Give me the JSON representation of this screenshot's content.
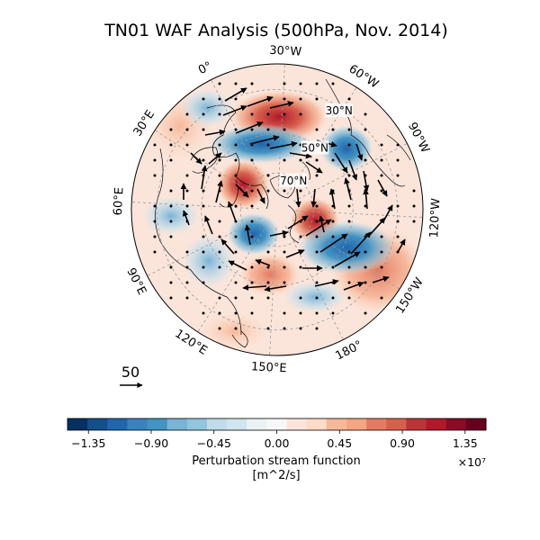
{
  "figure": {
    "title": "TN01 WAF Analysis (500hPa, Nov. 2014)"
  },
  "map": {
    "projection": "north-polar-stereographic",
    "lon_labels": [
      "30°W",
      "60°W",
      "90°W",
      "120°W",
      "150°W",
      "180°",
      "150°E",
      "120°E",
      "90°E",
      "60°E",
      "30°E",
      "0°"
    ],
    "lat_labels": [
      "30°N",
      "50°N",
      "70°N"
    ],
    "field": "perturbation stream function (shaded)",
    "vectors": "wave activity flux (arrows)"
  },
  "reference_vector": {
    "label": "50"
  },
  "colorbar": {
    "label_line1": "Perturbation stream function",
    "label_line2": "[m^2/s]",
    "multiplier": "×10⁷",
    "ticks": [
      "−1.35",
      "−0.90",
      "−0.45",
      "0.00",
      "0.45",
      "0.90",
      "1.35"
    ],
    "range": [
      -1.5,
      1.5
    ],
    "colors": [
      "#053061",
      "#144f8a",
      "#2166ac",
      "#3a82bd",
      "#4393c3",
      "#79b3d5",
      "#92c5de",
      "#c0dceb",
      "#d1e5f0",
      "#ebf2f6",
      "#f7f7f7",
      "#fbe5da",
      "#fddbc7",
      "#f7b799",
      "#f4a582",
      "#e27b62",
      "#d6604d",
      "#bb3538",
      "#b2182b",
      "#8a0b25",
      "#67001f"
    ]
  }
}
